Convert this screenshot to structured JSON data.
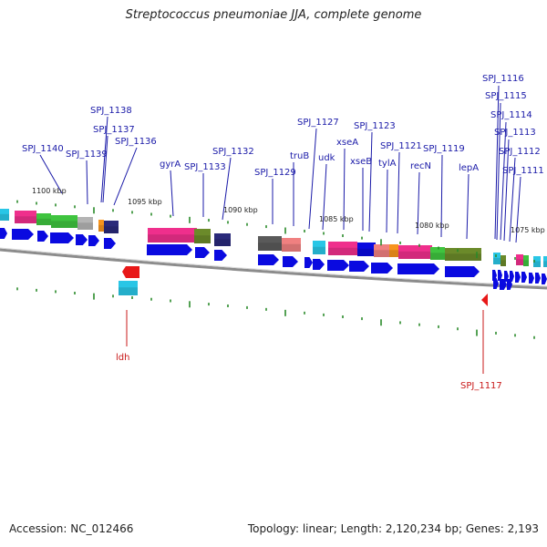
{
  "title": "Streptococcus pneumoniae JJA, complete genome",
  "footer": {
    "accession": "Accession: NC_012466",
    "stats": "Topology: linear; Length: 2,120,234 bp; Genes: 2,193"
  },
  "colors": {
    "gene_arrow": "#0a0ae0",
    "backbone": "#8c8c8c",
    "tick": "#2a8a2a",
    "label_blue": "#1a1aa8",
    "label_red": "#c81818",
    "red_arrow": "#e81818",
    "cyan": "#29c6e6",
    "pink": "#ef2f8c",
    "green": "#3fc43f",
    "olive": "#6b8a2a",
    "navy": "#2a2a7a",
    "grey": "#b4b4b4",
    "dark_grey": "#5a5a5a",
    "salmon": "#f08080",
    "orange": "#f7941d",
    "light_green": "#8cd08c"
  },
  "kbp_labels": [
    "1100 kbp",
    "1095 kbp",
    "1090 kbp",
    "1085 kbp",
    "1080 kbp",
    "1075 kbp"
  ],
  "gene_labels_top": [
    "SPJ_1140",
    "SPJ_1139",
    "SPJ_1138",
    "SPJ_1137",
    "SPJ_1136",
    "gyrA",
    "SPJ_1133",
    "SPJ_1132",
    "SPJ_1129",
    "truB",
    "SPJ_1127",
    "udk",
    "xseA",
    "xseB",
    "SPJ_1123",
    "tylA",
    "SPJ_1121",
    "recN",
    "SPJ_1119",
    "lepA",
    "SPJ_1116",
    "SPJ_1115",
    "SPJ_1114",
    "SPJ_1113",
    "SPJ_1112",
    "SPJ_1111"
  ],
  "gene_labels_bottom": [
    "ldh",
    "SPJ_1117"
  ]
}
